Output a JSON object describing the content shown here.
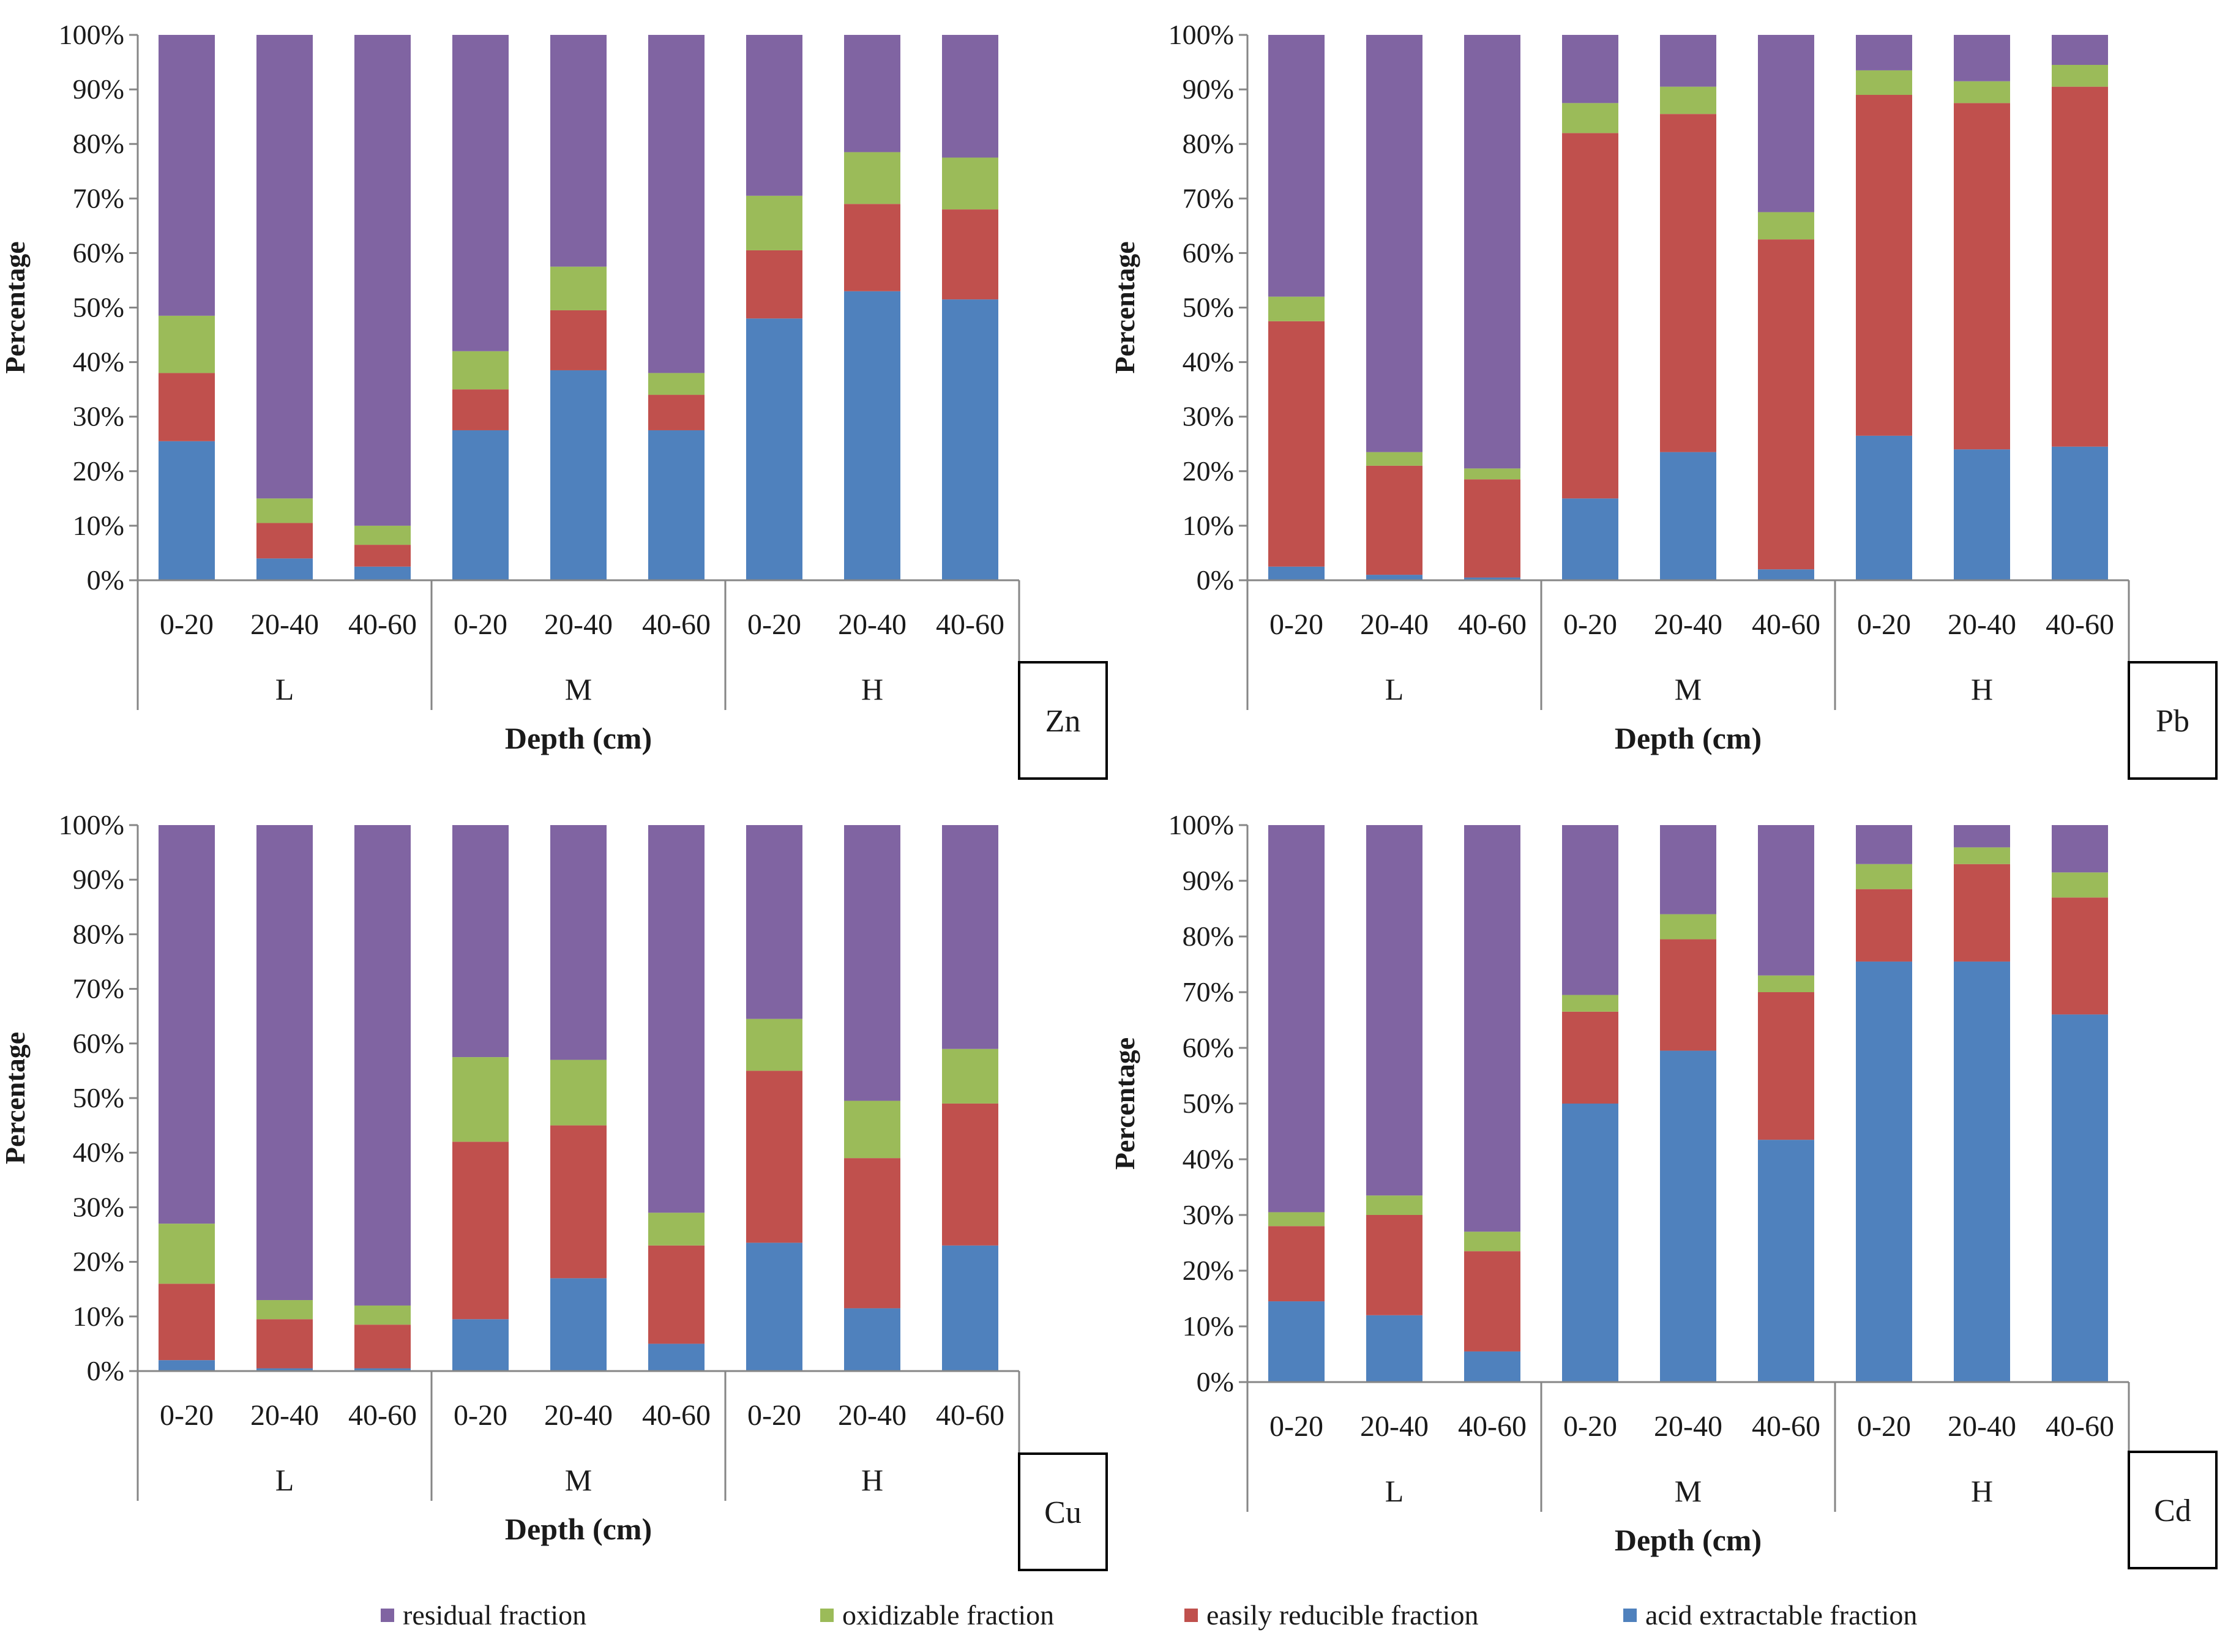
{
  "chart_data": [
    {
      "type": "bar",
      "stacked": "percent",
      "metal": "Zn",
      "ylabel": "Percentage",
      "xlabel": "Depth (cm)",
      "yticks": [
        "0%",
        "10%",
        "20%",
        "30%",
        "40%",
        "50%",
        "60%",
        "70%",
        "80%",
        "90%",
        "100%"
      ],
      "ylim": [
        0,
        100
      ],
      "groups": [
        "L",
        "M",
        "H"
      ],
      "categories": [
        "0-20",
        "20-40",
        "40-60",
        "0-20",
        "20-40",
        "40-60",
        "0-20",
        "20-40",
        "40-60"
      ],
      "series": [
        {
          "name": "acid extractable fraction",
          "values": [
            25.5,
            4,
            2.5,
            27.5,
            38.5,
            27.5,
            48,
            53,
            51.5
          ]
        },
        {
          "name": "easily reducible fraction",
          "values": [
            12.5,
            6.5,
            4,
            7.5,
            11,
            6.5,
            12.5,
            16,
            16.5
          ]
        },
        {
          "name": "oxidizable fraction",
          "values": [
            10.5,
            4.5,
            3.5,
            7,
            8,
            4,
            10,
            9.5,
            9.5
          ]
        },
        {
          "name": "residual fraction",
          "values": [
            51.5,
            85,
            90,
            58,
            42.5,
            62,
            29.5,
            21.5,
            22.5
          ]
        }
      ]
    },
    {
      "type": "bar",
      "stacked": "percent",
      "metal": "Pb",
      "ylabel": "Percentage",
      "xlabel": "Depth (cm)",
      "yticks": [
        "0%",
        "10%",
        "20%",
        "30%",
        "40%",
        "50%",
        "60%",
        "70%",
        "80%",
        "90%",
        "100%"
      ],
      "ylim": [
        0,
        100
      ],
      "groups": [
        "L",
        "M",
        "H"
      ],
      "categories": [
        "0-20",
        "20-40",
        "40-60",
        "0-20",
        "20-40",
        "40-60",
        "0-20",
        "20-40",
        "40-60"
      ],
      "series": [
        {
          "name": "acid extractable fraction",
          "values": [
            2.5,
            1,
            0.5,
            15,
            23.5,
            2,
            26.5,
            24,
            24.5
          ]
        },
        {
          "name": "easily reducible fraction",
          "values": [
            45,
            20,
            18,
            67,
            62,
            60.5,
            62.5,
            63.5,
            66
          ]
        },
        {
          "name": "oxidizable fraction",
          "values": [
            4.5,
            2.5,
            2,
            5.5,
            5,
            5,
            4.5,
            4,
            4
          ]
        },
        {
          "name": "residual fraction",
          "values": [
            48,
            76.5,
            79.5,
            12.5,
            9.5,
            32.5,
            6.5,
            8.5,
            5.5
          ]
        }
      ]
    },
    {
      "type": "bar",
      "stacked": "percent",
      "metal": "Cu",
      "ylabel": "Percentage",
      "xlabel": "Depth (cm)",
      "yticks": [
        "0%",
        "10%",
        "20%",
        "30%",
        "40%",
        "50%",
        "60%",
        "70%",
        "80%",
        "90%",
        "100%"
      ],
      "ylim": [
        0,
        100
      ],
      "groups": [
        "L",
        "M",
        "H"
      ],
      "categories": [
        "0-20",
        "20-40",
        "40-60",
        "0-20",
        "20-40",
        "40-60",
        "0-20",
        "20-40",
        "40-60"
      ],
      "series": [
        {
          "name": "acid extractable fraction",
          "values": [
            2,
            0.5,
            0.5,
            9.5,
            17,
            5,
            23.5,
            11.5,
            23
          ]
        },
        {
          "name": "easily reducible fraction",
          "values": [
            14,
            9,
            8,
            32.5,
            28,
            18,
            31.5,
            27.5,
            26
          ]
        },
        {
          "name": "oxidizable fraction",
          "values": [
            11,
            3.5,
            3.5,
            15.5,
            12,
            6,
            9.5,
            10.5,
            10
          ]
        },
        {
          "name": "residual fraction",
          "values": [
            73,
            87,
            88,
            42.5,
            43,
            71,
            35.5,
            50.5,
            41
          ]
        }
      ]
    },
    {
      "type": "bar",
      "stacked": "percent",
      "metal": "Cd",
      "ylabel": "Percentage",
      "xlabel": "Depth (cm)",
      "yticks": [
        "0%",
        "10%",
        "20%",
        "30%",
        "40%",
        "50%",
        "60%",
        "70%",
        "80%",
        "90%",
        "100%"
      ],
      "ylim": [
        0,
        100
      ],
      "groups": [
        "L",
        "M",
        "H"
      ],
      "categories": [
        "0-20",
        "20-40",
        "40-60",
        "0-20",
        "20-40",
        "40-60",
        "0-20",
        "20-40",
        "40-60"
      ],
      "series": [
        {
          "name": "acid extractable fraction",
          "values": [
            14.5,
            12,
            5.5,
            50,
            59.5,
            43.5,
            75.5,
            75.5,
            66
          ]
        },
        {
          "name": "easily reducible fraction",
          "values": [
            13.5,
            18,
            18,
            16.5,
            20,
            26.5,
            13,
            17.5,
            21
          ]
        },
        {
          "name": "oxidizable fraction",
          "values": [
            2.5,
            3.5,
            3.5,
            3,
            4.5,
            3,
            4.5,
            3,
            4.5
          ]
        },
        {
          "name": "residual fraction",
          "values": [
            69.5,
            66.5,
            73,
            30.5,
            16,
            27,
            7,
            4,
            8.5
          ]
        }
      ]
    }
  ],
  "colors": {
    "acid extractable fraction": "#4f81bd",
    "easily reducible fraction": "#c0504d",
    "oxidizable fraction": "#9bbb59",
    "residual fraction": "#8064a2"
  },
  "legend": [
    {
      "label": "residual fraction",
      "color": "#8064a2"
    },
    {
      "label": "oxidizable fraction",
      "color": "#9bbb59"
    },
    {
      "label": "easily reducible fraction",
      "color": "#c0504d"
    },
    {
      "label": "acid extractable fraction",
      "color": "#4f81bd"
    }
  ]
}
